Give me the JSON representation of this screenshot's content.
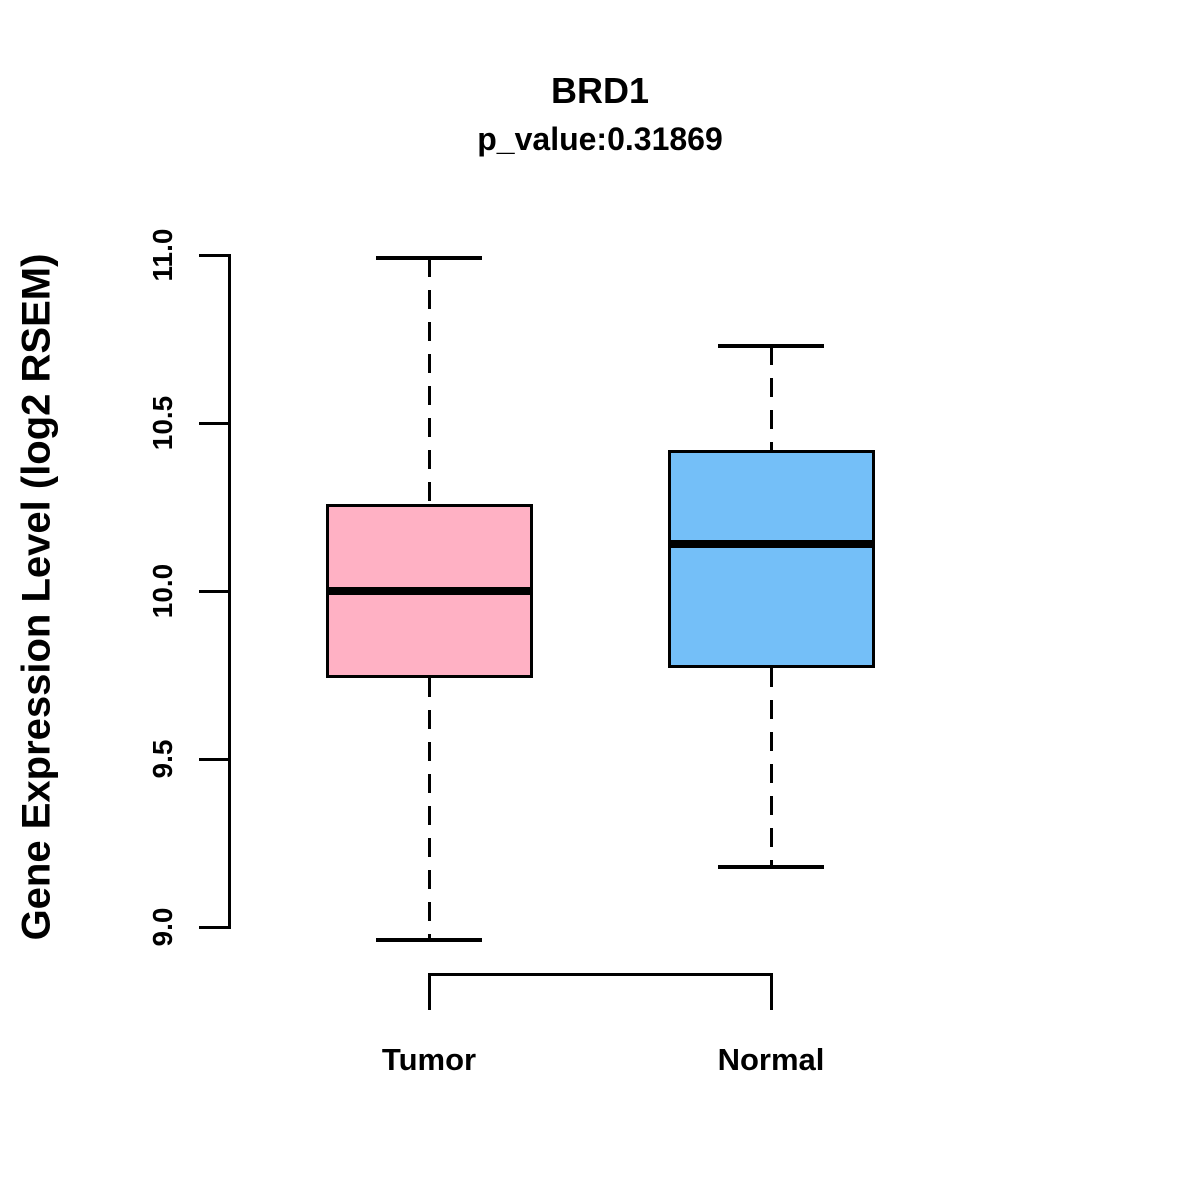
{
  "header": {
    "title": "BRD1",
    "subtitle": "p_value:0.31869"
  },
  "chart_data": {
    "type": "boxplot",
    "title": "BRD1",
    "subtitle": "p_value:0.31869",
    "ylabel": "Gene Expression Level (log2 RSEM)",
    "xlabel": "",
    "ylim": [
      8.8,
      11.05
    ],
    "yticks": [
      "9.0",
      "9.5",
      "10.0",
      "10.5",
      "11.0"
    ],
    "ytick_values": [
      9.0,
      9.5,
      10.0,
      10.5,
      11.0
    ],
    "grid": false,
    "legend": "none",
    "categories": [
      "Tumor",
      "Normal"
    ],
    "series": [
      {
        "name": "Tumor",
        "fill_color": "#FFB1C4",
        "whisker_low": 8.96,
        "q1": 9.74,
        "median": 10.0,
        "q3": 10.26,
        "whisker_high": 10.99
      },
      {
        "name": "Normal",
        "fill_color": "#74BFF8",
        "whisker_low": 9.18,
        "q1": 9.77,
        "median": 10.14,
        "q3": 10.42,
        "whisker_high": 10.73
      }
    ],
    "annotations": {
      "comparison_bracket_between": [
        "Tumor",
        "Normal"
      ]
    }
  },
  "colors": {
    "line": "#000000",
    "background": "#FFFFFF",
    "tumor_fill": "#FFB1C4",
    "normal_fill": "#74BFF8"
  }
}
